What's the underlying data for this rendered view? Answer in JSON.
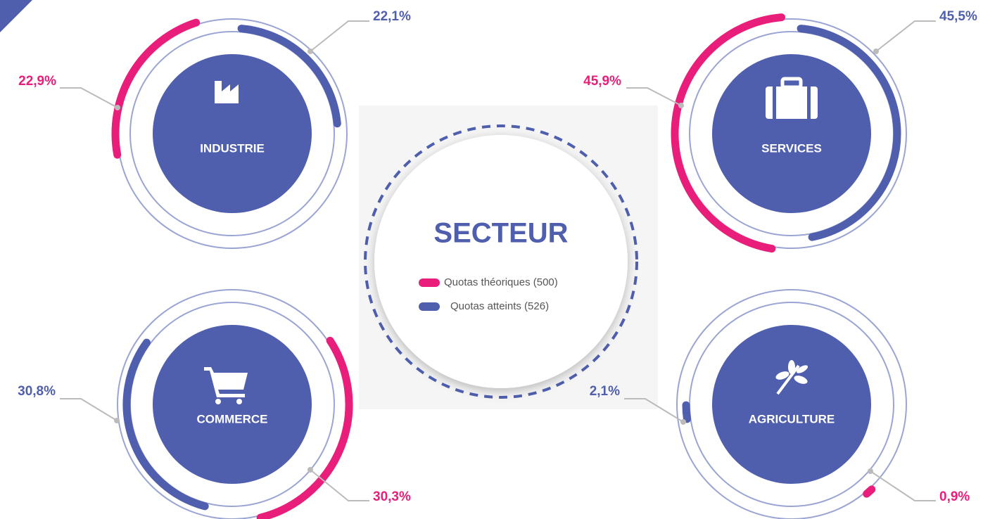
{
  "chart_data": {
    "type": "radial",
    "title": "SECTEUR",
    "categories": [
      "INDUSTRIE",
      "SERVICES",
      "COMMERCE",
      "AGRICULTURE"
    ],
    "series": [
      {
        "name": "Quotas théoriques (500)",
        "color": "#e91e7a",
        "values": [
          22.9,
          45.9,
          30.3,
          0.9
        ],
        "value_labels": [
          "22,9%",
          "45,9%",
          "30,3%",
          "0,9%"
        ]
      },
      {
        "name": "Quotas atteints (526)",
        "color": "#4f5fae",
        "values": [
          22.1,
          45.5,
          30.8,
          2.1
        ],
        "value_labels": [
          "22,1%",
          "45,5%",
          "30,8%",
          "2,1%"
        ]
      }
    ],
    "ylim": [
      0,
      100
    ]
  }
}
